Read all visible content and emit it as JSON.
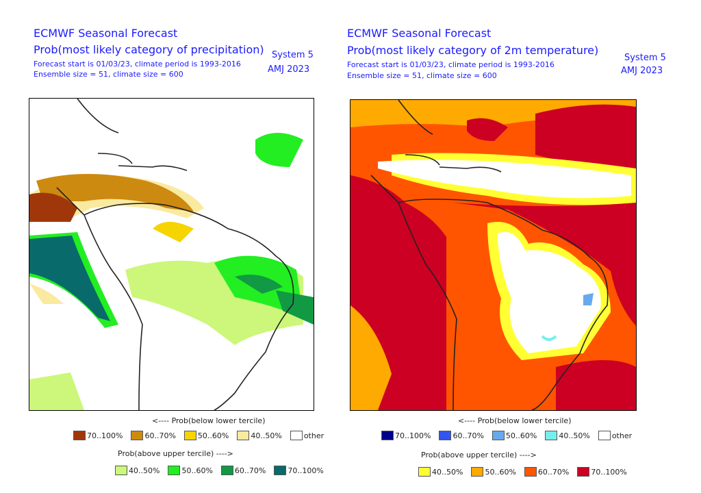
{
  "left": {
    "title": "ECMWF Seasonal Forecast",
    "subtitle": "Prob(most likely category of precipitation)",
    "line1": "Forecast start is 01/03/23, climate period is 1993-2016",
    "line2": "Ensemble size = 51, climate size = 600",
    "system": "System 5",
    "season": "AMJ 2023",
    "below_title": "<---- Prob(below lower tercile)",
    "above_title": "Prob(above upper tercile) ---->",
    "below": [
      {
        "label": "70..100%",
        "color": "#a0370a"
      },
      {
        "label": "60..70%",
        "color": "#cc8a10"
      },
      {
        "label": "50..60%",
        "color": "#f5d400"
      },
      {
        "label": "40..50%",
        "color": "#faeaa0"
      },
      {
        "label": "other",
        "color": "#ffffff"
      }
    ],
    "above": [
      {
        "label": "40..50%",
        "color": "#ccf77a"
      },
      {
        "label": "50..60%",
        "color": "#22ee22"
      },
      {
        "label": "60..70%",
        "color": "#119944"
      },
      {
        "label": "70..100%",
        "color": "#086a6a"
      }
    ]
  },
  "right": {
    "title": "ECMWF Seasonal Forecast",
    "subtitle": "Prob(most likely category of 2m temperature)",
    "line1": "Forecast start is 01/03/23, climate period is 1993-2016",
    "line2": "Ensemble size = 51, climate size = 600",
    "system": "System 5",
    "season": "AMJ 2023",
    "below_title": "<---- Prob(below lower tercile)",
    "above_title": "Prob(above upper tercile) ---->",
    "below": [
      {
        "label": "70..100%",
        "color": "#00008b"
      },
      {
        "label": "60..70%",
        "color": "#3355ee"
      },
      {
        "label": "50..60%",
        "color": "#66aaee"
      },
      {
        "label": "40..50%",
        "color": "#77eeee"
      },
      {
        "label": "other",
        "color": "#ffffff"
      }
    ],
    "above": [
      {
        "label": "40..50%",
        "color": "#ffff33"
      },
      {
        "label": "50..60%",
        "color": "#ffaa00"
      },
      {
        "label": "60..70%",
        "color": "#ff5500"
      },
      {
        "label": "70..100%",
        "color": "#cc0022"
      }
    ]
  }
}
